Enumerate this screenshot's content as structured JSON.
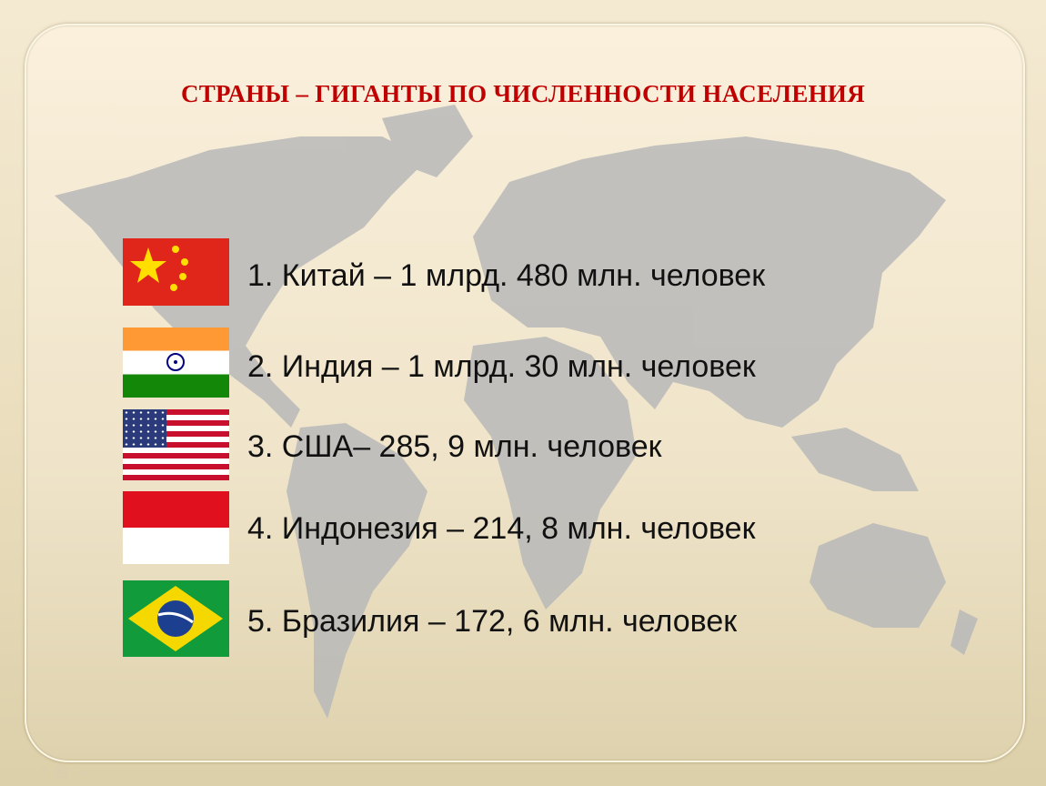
{
  "title": "СТРАНЫ – ГИГАНТЫ ПО ЧИСЛЕННОСТИ НАСЕЛЕНИЯ",
  "colors": {
    "title": "#c00000",
    "map": "#b9b9b9",
    "background": "#f2e8cf"
  },
  "items": [
    {
      "flag": "china-flag",
      "text": "1. Китай – 1 млрд. 480 млн. человек"
    },
    {
      "flag": "india-flag",
      "text": "2. Индия – 1 млрд. 30 млн. человек"
    },
    {
      "flag": "usa-flag",
      "text": "3. США– 285, 9 млн. человек"
    },
    {
      "flag": "indonesia-flag",
      "text": "4. Индонезия – 214, 8 млн. человек"
    },
    {
      "flag": "brazil-flag",
      "text": "5. Бразилия – 172, 6 млн. человек"
    }
  ]
}
